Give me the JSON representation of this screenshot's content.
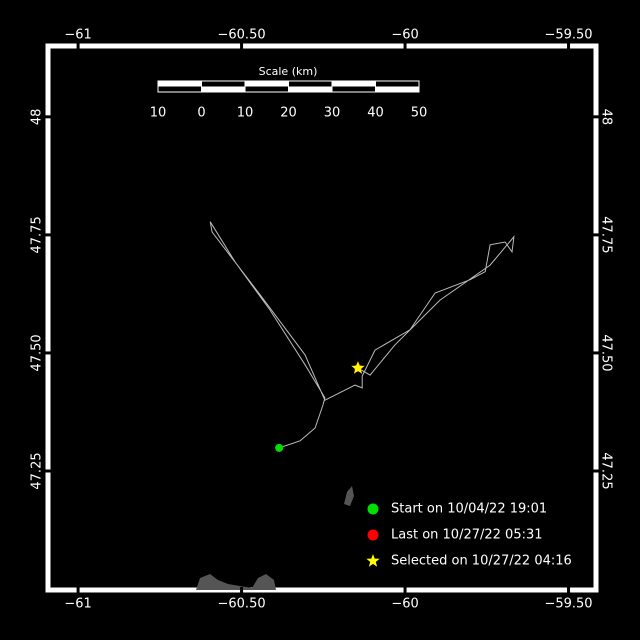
{
  "chart_data": {
    "type": "map",
    "xlim": [
      -61.092,
      -59.416
    ],
    "ylim": [
      46.998,
      48.15
    ],
    "xticks": [
      {
        "value": -61,
        "label": "−61"
      },
      {
        "value": -60.5,
        "label": "−60.50"
      },
      {
        "value": -60,
        "label": "−60"
      },
      {
        "value": -59.5,
        "label": "−59.50"
      }
    ],
    "yticks": [
      {
        "value": 47.25,
        "label": "47.25"
      },
      {
        "value": 47.5,
        "label": "47.50"
      },
      47.75,
      48
    ],
    "scale_bar": {
      "title": "Scale (km)",
      "ticks": [
        {
          "value": -10,
          "label": "10"
        },
        0,
        10,
        20,
        30,
        40,
        50
      ]
    },
    "track": {
      "color": "#bbbbbb",
      "lon": [
        -60.385,
        -60.321,
        -60.275,
        -60.251,
        -60.245,
        -60.306,
        -60.413,
        -60.52,
        -60.596,
        -60.59,
        -60.443,
        -60.306,
        -60.245,
        -60.153,
        -60.131,
        -60.131,
        -60.092,
        -59.985,
        -59.908,
        -59.801,
        -59.755,
        -59.74,
        -59.694,
        -59.673,
        -59.667,
        -59.74,
        -59.893,
        -60.031,
        -60.107,
        -60.144
      ],
      "lat": [
        47.299,
        47.314,
        47.341,
        47.39,
        47.405,
        47.475,
        47.591,
        47.693,
        47.778,
        47.756,
        47.623,
        47.496,
        47.4,
        47.432,
        47.426,
        47.451,
        47.506,
        47.549,
        47.627,
        47.655,
        47.672,
        47.729,
        47.735,
        47.714,
        47.746,
        47.686,
        47.612,
        47.517,
        47.453,
        47.468
      ]
    },
    "points": [
      {
        "label": "Start on 10/04/22 19:01",
        "marker": "circle",
        "color": "#00e000",
        "lon": -60.385,
        "lat": 47.299
      },
      {
        "label": "Last on 10/27/22 05:31",
        "marker": "circle",
        "color": "#ff0000",
        "lon": -60.144,
        "lat": 47.468
      },
      {
        "label": "Selected on 10/27/22 04:16",
        "marker": "star",
        "color": "#ffff00",
        "lon": -60.144,
        "lat": 47.468
      }
    ]
  }
}
